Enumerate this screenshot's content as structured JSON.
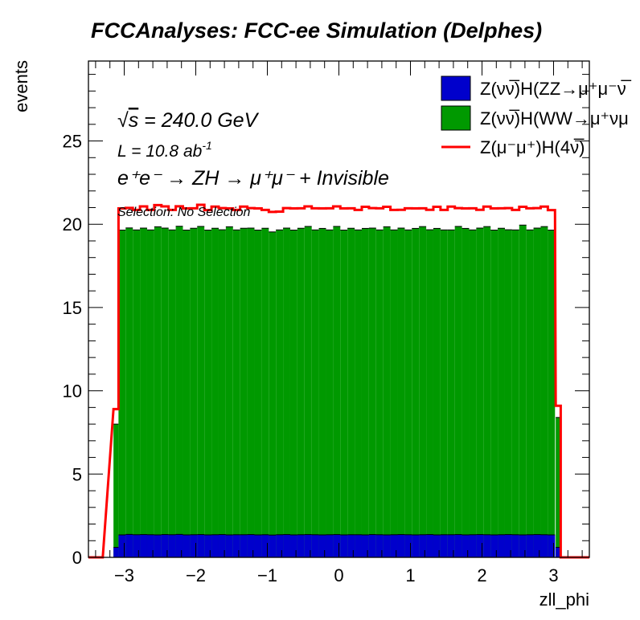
{
  "chart_data": {
    "type": "histogram",
    "title": "FCCAnalyses: FCC-ee Simulation (Delphes)",
    "xlabel": "zll_phi",
    "ylabel": "events",
    "xlim": [
      -3.5,
      3.5
    ],
    "ylim": [
      0,
      29.8
    ],
    "x_ticks": [
      -3,
      -2,
      -1,
      0,
      1,
      2,
      3
    ],
    "x_tick_labels": [
      "−3",
      "−2",
      "−1",
      "0",
      "1",
      "2",
      "3"
    ],
    "y_ticks": [
      0,
      5,
      10,
      15,
      20,
      25
    ],
    "y_tick_labels": [
      "0",
      "5",
      "10",
      "15",
      "20",
      "25"
    ],
    "annotations": {
      "energy_sqrt": "√",
      "energy_s": "s",
      "energy_rest": " = 240.0 GeV",
      "lumi_base": "L = 10.8 ab",
      "lumi_exp": "-1",
      "process": "e⁺e⁻ → ZH → μ⁺μ⁻ + Invisible",
      "selection": "Selection: No Selection"
    },
    "bins": {
      "first_low_edges": [
        -3.5,
        -3.15
      ],
      "first_widths": [
        0.2,
        0.07
      ],
      "regular_start": -3.08,
      "regular_width": 0.1,
      "regular_count": 61,
      "last_low_edges": [
        3.03,
        3.1
      ],
      "last_widths": [
        0.07,
        0.4
      ]
    },
    "series": [
      {
        "name": "Z(νν̅)H(ZZ→μ⁺μ⁻νν)",
        "legend_label": "Z(νν̅)H(ZZ→μ⁺μ⁻ν̅",
        "kind": "filled-stack",
        "color": "#0000cc",
        "first_values": [
          0,
          0.6
        ],
        "values": [
          1.35,
          1.38,
          1.36,
          1.37,
          1.36,
          1.35,
          1.37,
          1.36,
          1.38,
          1.35,
          1.36,
          1.37,
          1.35,
          1.36,
          1.37,
          1.35,
          1.36,
          1.36,
          1.37,
          1.35,
          1.36,
          1.34,
          1.36,
          1.37,
          1.35,
          1.36,
          1.37,
          1.36,
          1.35,
          1.36,
          1.37,
          1.35,
          1.36,
          1.36,
          1.35,
          1.37,
          1.36,
          1.35,
          1.36,
          1.37,
          1.36,
          1.35,
          1.36,
          1.37,
          1.35,
          1.36,
          1.36,
          1.37,
          1.35,
          1.36,
          1.37,
          1.36,
          1.35,
          1.36,
          1.37,
          1.36,
          1.35,
          1.36,
          1.37,
          1.36,
          1.35
        ],
        "last_values": [
          0.6,
          0
        ]
      },
      {
        "name": "Z(νν̅)H(WW→μ⁺νμ⁻ν)",
        "legend_label": "Z(νν̅)H(WW→μ⁺νμ",
        "kind": "filled-stack",
        "color": "#009900",
        "first_values": [
          0,
          7.4
        ],
        "values": [
          18.3,
          18.4,
          18.3,
          18.4,
          18.3,
          18.5,
          18.4,
          18.3,
          18.5,
          18.3,
          18.4,
          18.5,
          18.3,
          18.4,
          18.3,
          18.5,
          18.3,
          18.4,
          18.4,
          18.3,
          18.4,
          18.2,
          18.3,
          18.4,
          18.3,
          18.4,
          18.5,
          18.3,
          18.4,
          18.3,
          18.5,
          18.3,
          18.4,
          18.3,
          18.4,
          18.4,
          18.3,
          18.5,
          18.3,
          18.4,
          18.3,
          18.4,
          18.5,
          18.3,
          18.4,
          18.3,
          18.3,
          18.5,
          18.4,
          18.3,
          18.4,
          18.5,
          18.3,
          18.4,
          18.3,
          18.3,
          18.6,
          18.3,
          18.4,
          18.5,
          18.3
        ],
        "last_values": [
          7.8,
          0
        ]
      },
      {
        "name": "Z(μ⁻μ⁺)H(4ν)",
        "legend_label": "Z(μ⁻μ⁺)H(4ν̅)",
        "kind": "line-stack",
        "color": "#ff0000",
        "first_values": [
          0,
          0.9
        ],
        "values": [
          1.3,
          1.2,
          1.2,
          1.3,
          1.2,
          1.3,
          1.3,
          1.2,
          1.2,
          1.3,
          1.2,
          1.3,
          1.2,
          1.3,
          1.3,
          1.1,
          1.2,
          1.3,
          1.2,
          1.3,
          1.1,
          1.2,
          1.1,
          1.2,
          1.3,
          1.2,
          1.2,
          1.3,
          1.2,
          1.3,
          1.2,
          1.3,
          1.2,
          1.2,
          1.3,
          1.2,
          1.3,
          1.2,
          1.2,
          1.1,
          1.3,
          1.2,
          1.1,
          1.2,
          1.3,
          1.2,
          1.4,
          1.1,
          1.2,
          1.3,
          1.1,
          1.2,
          1.3,
          1.2,
          1.3,
          1.2,
          1.1,
          1.3,
          1.2,
          1.2,
          1.2
        ],
        "last_values": [
          0.7,
          0
        ]
      }
    ],
    "legend_position": "top-right",
    "grid": false
  }
}
